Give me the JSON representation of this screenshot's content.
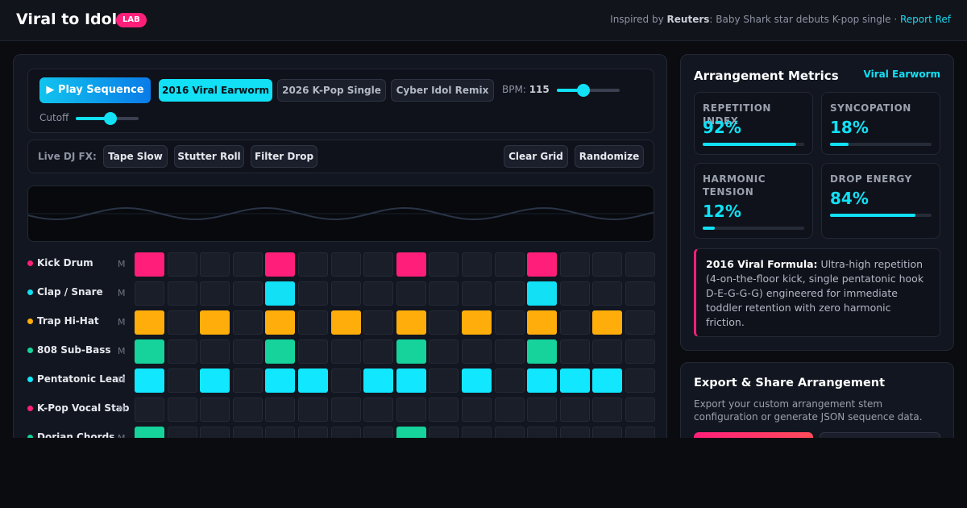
{
  "header": {
    "brand": "Viral to Idol",
    "badge": "LAB",
    "inspired_prefix": "Inspired by ",
    "inspired_source": "Reuters",
    "inspired_text": ": Baby Shark star debuts K-pop single · ",
    "inspired_link": "Report Ref"
  },
  "controls": {
    "play_label": "▶ Play Sequence",
    "presets": [
      {
        "label": "2016 Viral Earworm",
        "active": true
      },
      {
        "label": "2026 K-Pop Single",
        "active": false
      },
      {
        "label": "Cyber Idol Remix",
        "active": false
      }
    ],
    "bpm_label": "BPM:",
    "bpm_value": "115",
    "bpm_level": 0.42,
    "cutoff_label": "Cutoff",
    "cutoff_level": 0.55
  },
  "fx": {
    "label": "Live DJ FX:",
    "buttons": [
      "Tape Slow",
      "Stutter Roll",
      "Filter Drop"
    ],
    "clear_label": "Clear Grid",
    "randomize_label": "Randomize"
  },
  "tracks": [
    {
      "name": "Kick Drum",
      "mute": "M",
      "color": "#ff1f7a",
      "steps": [
        1,
        0,
        0,
        0,
        1,
        0,
        0,
        0,
        1,
        0,
        0,
        0,
        1,
        0,
        0,
        0
      ]
    },
    {
      "name": "Clap / Snare",
      "mute": "M",
      "color": "#11e0f5",
      "steps": [
        0,
        0,
        0,
        0,
        1,
        0,
        0,
        0,
        0,
        0,
        0,
        0,
        1,
        0,
        0,
        0
      ]
    },
    {
      "name": "Trap Hi-Hat",
      "mute": "M",
      "color": "#ffad0a",
      "steps": [
        1,
        0,
        1,
        0,
        1,
        0,
        1,
        0,
        1,
        0,
        1,
        0,
        1,
        0,
        1,
        0
      ]
    },
    {
      "name": "808 Sub-Bass",
      "mute": "M",
      "color": "#15d39a",
      "steps": [
        1,
        0,
        0,
        0,
        1,
        0,
        0,
        0,
        1,
        0,
        0,
        0,
        1,
        0,
        0,
        0
      ]
    },
    {
      "name": "Pentatonic Lead",
      "mute": "M",
      "color": "#11e8ff",
      "steps": [
        1,
        0,
        1,
        0,
        1,
        1,
        0,
        1,
        1,
        0,
        1,
        0,
        1,
        1,
        1,
        0
      ]
    },
    {
      "name": "K-Pop Vocal Stab",
      "mute": "M",
      "color": "#ff1f7a",
      "steps": [
        0,
        0,
        0,
        0,
        0,
        0,
        0,
        0,
        0,
        0,
        0,
        0,
        0,
        0,
        0,
        0
      ]
    },
    {
      "name": "Dorian Chords",
      "mute": "M",
      "color": "#15d39a",
      "steps": [
        1,
        0,
        0,
        0,
        0,
        0,
        0,
        0,
        1,
        0,
        0,
        0,
        0,
        0,
        0,
        0
      ]
    }
  ],
  "metrics": {
    "title": "Arrangement Metrics",
    "preset": "Viral Earworm",
    "items": [
      {
        "label": "REPETITION INDEX",
        "value": "92%",
        "level": 0.92
      },
      {
        "label": "SYNCOPATION",
        "value": "18%",
        "level": 0.18
      },
      {
        "label": "HARMONIC TENSION",
        "value": "12%",
        "level": 0.12
      },
      {
        "label": "DROP ENERGY",
        "value": "84%",
        "level": 0.84
      }
    ],
    "formula_title": "2016 Viral Formula:",
    "formula_text": " Ultra-high repetition (4-on-the-floor kick, single pentatonic hook D-E-G-G-G) engineered for immediate toddler retention with zero harmonic friction."
  },
  "export": {
    "title": "Export & Share Arrangement",
    "desc": "Export your custom arrangement stem configuration or generate JSON sequence data."
  }
}
